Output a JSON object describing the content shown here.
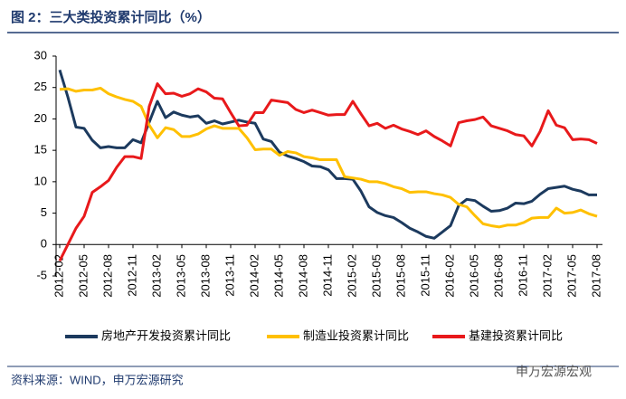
{
  "chart_data": {
    "type": "line",
    "title": "图 2：三大类投资累计同比（%）",
    "source": "资料来源：WIND，申万宏源研究",
    "watermark": "申万宏源宏观",
    "categories": [
      "2012-02",
      null,
      null,
      "2012-05",
      null,
      null,
      "2012-08",
      null,
      null,
      "2012-11",
      null,
      null,
      "2013-02",
      null,
      null,
      "2013-05",
      null,
      null,
      "2013-08",
      null,
      null,
      "2013-11",
      null,
      null,
      "2014-02",
      null,
      null,
      "2014-05",
      null,
      null,
      "2014-08",
      null,
      null,
      "2014-11",
      null,
      null,
      "2015-02",
      null,
      null,
      "2015-05",
      null,
      null,
      "2015-08",
      null,
      null,
      "2015-11",
      null,
      null,
      "2016-02",
      null,
      null,
      "2016-05",
      null,
      null,
      "2016-08",
      null,
      null,
      "2016-11",
      null,
      null,
      "2017-02",
      null,
      null,
      "2017-05",
      null,
      null,
      "2017-08"
    ],
    "series": [
      {
        "name": "房地产开发投资累计同比",
        "color": "#1c3a5e",
        "values": [
          27.8,
          23.5,
          18.7,
          18.5,
          16.6,
          15.4,
          15.6,
          15.4,
          15.4,
          16.7,
          16.2,
          19.5,
          22.8,
          20.2,
          21.1,
          20.6,
          20.3,
          20.5,
          19.3,
          19.7,
          19.2,
          19.5,
          19.8,
          19.5,
          19.3,
          16.8,
          16.4,
          14.7,
          14.1,
          13.7,
          13.2,
          12.5,
          12.4,
          11.9,
          10.5,
          10.5,
          10.4,
          8.5,
          6.0,
          5.1,
          4.6,
          4.3,
          3.5,
          2.6,
          2.0,
          1.3,
          1.0,
          2.0,
          3.0,
          6.2,
          7.2,
          7.0,
          6.1,
          5.3,
          5.4,
          5.8,
          6.6,
          6.5,
          6.9,
          8.0,
          8.9,
          9.1,
          9.3,
          8.8,
          8.5,
          7.9,
          7.9
        ]
      },
      {
        "name": "制造业投资累计同比",
        "color": "#ffc000",
        "values": [
          24.7,
          24.8,
          24.4,
          24.6,
          24.6,
          24.9,
          24.0,
          23.5,
          23.1,
          22.8,
          22.0,
          19.0,
          17.0,
          18.6,
          18.3,
          17.2,
          17.2,
          17.6,
          18.4,
          18.9,
          18.5,
          18.5,
          18.5,
          17.0,
          15.1,
          15.2,
          15.2,
          14.2,
          14.8,
          14.6,
          14.0,
          13.8,
          13.5,
          13.5,
          13.5,
          10.8,
          10.6,
          10.4,
          10.0,
          10.0,
          9.7,
          9.2,
          8.9,
          8.3,
          8.4,
          8.4,
          8.1,
          7.9,
          7.5,
          6.4,
          6.0,
          4.6,
          3.3,
          3.0,
          2.8,
          3.1,
          3.1,
          3.5,
          4.2,
          4.3,
          4.3,
          5.8,
          5.0,
          5.1,
          5.5,
          4.9,
          4.5
        ]
      },
      {
        "name": "基建投资累计同比",
        "color": "#e8191b",
        "values": [
          -2.6,
          0,
          2.6,
          4.5,
          8.3,
          9.2,
          10.2,
          12.3,
          14.0,
          14.0,
          13.7,
          22.0,
          25.6,
          24.0,
          24.1,
          23.6,
          24.0,
          24.8,
          24.3,
          23.3,
          23.2,
          21.0,
          18.9,
          19.0,
          21.0,
          21.0,
          23.0,
          22.8,
          22.6,
          21.5,
          21.0,
          21.4,
          21.0,
          20.6,
          20.7,
          20.7,
          22.8,
          20.8,
          18.9,
          19.3,
          18.5,
          19.0,
          18.4,
          18.0,
          17.5,
          18.1,
          17.2,
          16.5,
          15.7,
          19.4,
          19.7,
          19.9,
          20.3,
          18.9,
          18.5,
          18.1,
          17.5,
          17.3,
          15.7,
          18.0,
          21.3,
          19.0,
          18.6,
          16.7,
          16.8,
          16.7,
          16.1
        ]
      }
    ],
    "ylim": [
      -5,
      30
    ],
    "yticks": [
      30,
      25,
      20,
      15,
      10,
      5,
      0,
      -5
    ]
  }
}
